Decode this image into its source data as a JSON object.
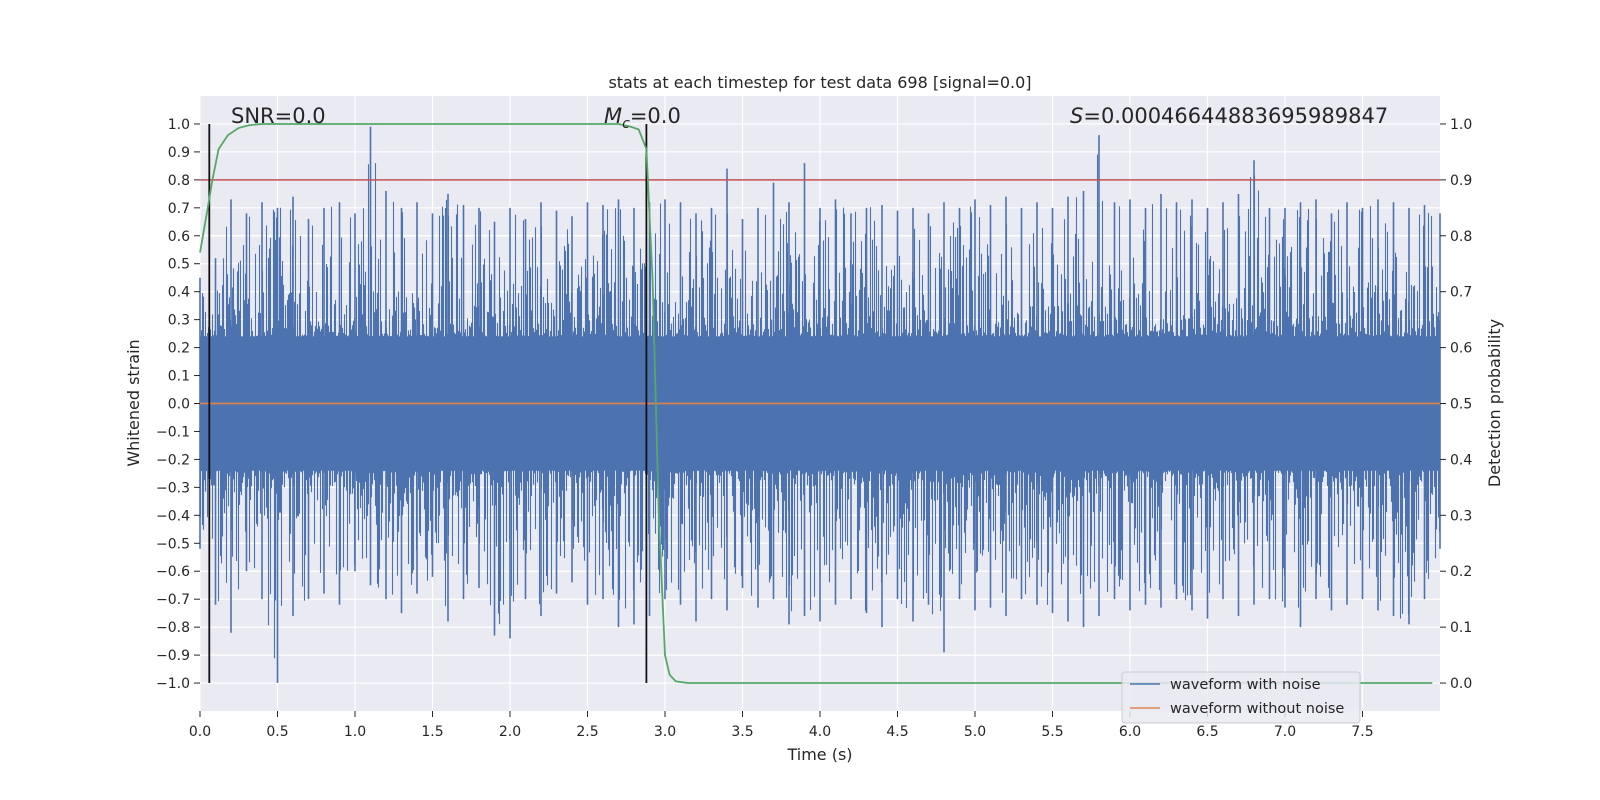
{
  "chart_data": {
    "type": "line",
    "title": "stats at each timestep for test data 698 [signal=0.0]",
    "xlabel": "Time (s)",
    "ylabel": "Whitened strain",
    "ylabel_right": "Detection probability",
    "xlim": [
      0.0,
      8.0
    ],
    "ylim": [
      -1.1,
      1.1
    ],
    "ylim_right": [
      -0.05,
      1.05
    ],
    "xticks": [
      "0.0",
      "0.5",
      "1.0",
      "1.5",
      "2.0",
      "2.5",
      "3.0",
      "3.5",
      "4.0",
      "4.5",
      "5.0",
      "5.5",
      "6.0",
      "6.5",
      "7.0",
      "7.5"
    ],
    "yticks": [
      "1.0",
      "0.9",
      "0.8",
      "0.7",
      "0.6",
      "0.5",
      "0.4",
      "0.3",
      "0.2",
      "0.1",
      "0.0",
      "−0.1",
      "−0.2",
      "−0.3",
      "−0.4",
      "−0.5",
      "−0.6",
      "−0.7",
      "−0.8",
      "−0.9",
      "−1.0"
    ],
    "yticks_right": [
      "1.0",
      "0.9",
      "0.8",
      "0.7",
      "0.6",
      "0.5",
      "0.4",
      "0.3",
      "0.2",
      "0.1",
      "0.0"
    ],
    "grid": true,
    "legend_position": "bottom-right",
    "annotations": {
      "snr_label": "SNR=0.0",
      "mc_symbol": "M",
      "mc_subscript": "c",
      "mc_value": "=0.0",
      "s_symbol": "S",
      "s_value": "=0.00046644883695989847"
    },
    "series": [
      {
        "name": "waveform with noise",
        "color": "#4c72b0",
        "description": "noise only, dense band mostly within ±0.4 with spikes",
        "envelope_upper": [
          0.45,
          0.52,
          0.73,
          0.68,
          0.72,
          0.7,
          0.74,
          0.66,
          0.7,
          0.72,
          0.68,
          0.99,
          0.76,
          0.7,
          0.72,
          0.68,
          0.75,
          0.71,
          0.7,
          0.65,
          0.7,
          0.66,
          0.72,
          0.69,
          0.67,
          0.72,
          0.71,
          0.73,
          0.7,
          0.72,
          0.73,
          0.72,
          0.68,
          0.7,
          0.84,
          0.66,
          0.7,
          0.79,
          0.72,
          0.86,
          0.7,
          0.73,
          0.68,
          0.7,
          0.71,
          0.69,
          0.7,
          0.68,
          0.72,
          0.7,
          0.73,
          0.71,
          0.74,
          0.7,
          0.72,
          0.7,
          0.74,
          0.76,
          0.96,
          0.72,
          0.73,
          0.7,
          0.75,
          0.72,
          0.73,
          0.7,
          0.72,
          0.75,
          0.87,
          0.7,
          0.7,
          0.72,
          0.73,
          0.68,
          0.72,
          0.7,
          0.73,
          0.72,
          0.7,
          0.71,
          0.68
        ],
        "envelope_lower": [
          -0.52,
          -0.72,
          -0.82,
          -0.6,
          -0.7,
          -1.0,
          -0.76,
          -0.7,
          -0.68,
          -0.72,
          -0.6,
          -0.65,
          -0.7,
          -0.75,
          -0.68,
          -0.62,
          -0.78,
          -0.7,
          -0.66,
          -0.83,
          -0.84,
          -0.7,
          -0.76,
          -0.68,
          -0.64,
          -0.72,
          -0.7,
          -0.8,
          -0.79,
          -0.76,
          -0.7,
          -0.72,
          -0.78,
          -0.7,
          -0.74,
          -0.66,
          -0.73,
          -0.7,
          -0.79,
          -0.76,
          -0.78,
          -0.72,
          -0.7,
          -0.75,
          -0.8,
          -0.7,
          -0.78,
          -0.72,
          -0.89,
          -0.7,
          -0.74,
          -0.73,
          -0.76,
          -0.7,
          -0.72,
          -0.75,
          -0.78,
          -0.8,
          -0.76,
          -0.7,
          -0.74,
          -0.72,
          -0.73,
          -0.7,
          -0.74,
          -0.77,
          -0.7,
          -0.76,
          -0.72,
          -0.7,
          -0.73,
          -0.8,
          -0.7,
          -0.74,
          -0.72,
          -0.7,
          -0.74,
          -0.76,
          -0.79,
          -0.7,
          -0.52
        ]
      },
      {
        "name": "waveform without noise",
        "color": "#dd8452",
        "x": [
          0.0,
          8.0
        ],
        "y": [
          0.0,
          0.0
        ]
      },
      {
        "name": "detection probability",
        "color": "#55a868",
        "axis": "right",
        "x": [
          0.0,
          0.05,
          0.08,
          0.12,
          0.18,
          0.25,
          0.32,
          0.4,
          0.5,
          1.0,
          1.5,
          2.0,
          2.5,
          2.7,
          2.78,
          2.83,
          2.88,
          2.92,
          2.96,
          3.0,
          3.03,
          3.07,
          3.15,
          3.5,
          4.0,
          5.0,
          6.0,
          7.0,
          7.95
        ],
        "y": [
          0.77,
          0.85,
          0.9,
          0.955,
          0.98,
          0.993,
          0.998,
          1.0,
          1.0,
          1.0,
          1.0,
          1.0,
          1.0,
          1.0,
          0.995,
          0.99,
          0.955,
          0.72,
          0.3,
          0.05,
          0.015,
          0.003,
          0.0,
          0.0,
          0.0,
          0.0,
          0.0,
          0.0,
          0.0
        ]
      }
    ],
    "hlines": [
      {
        "y": 0.8,
        "color": "#c44e52"
      }
    ],
    "vlines": [
      {
        "x": 0.06,
        "y_range": [
          -1.0,
          1.0
        ],
        "color": "#111111"
      },
      {
        "x": 2.88,
        "y_range": [
          -1.0,
          1.0
        ],
        "color": "#111111"
      }
    ]
  }
}
